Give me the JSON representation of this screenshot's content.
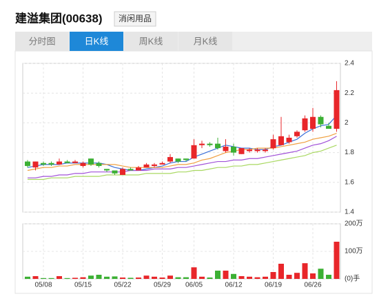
{
  "header": {
    "title": "建溢集团(00638)",
    "tag": "消闲用品"
  },
  "tabs": [
    "分时图",
    "日K线",
    "周K线",
    "月K线"
  ],
  "active_tab": 1,
  "chart_data": [
    {
      "type": "candlestick",
      "categories": [
        null,
        null,
        "05/08",
        null,
        null,
        null,
        null,
        "05/15",
        null,
        null,
        null,
        null,
        "05/22",
        null,
        null,
        null,
        null,
        "05/29",
        null,
        null,
        null,
        "06/05",
        null,
        null,
        null,
        null,
        "06/12",
        null,
        null,
        null,
        null,
        "06/19",
        null,
        null,
        null,
        null,
        "06/26",
        null,
        null,
        null
      ],
      "open": [
        1.74,
        1.7,
        1.73,
        1.73,
        1.72,
        1.74,
        1.73,
        1.71,
        1.76,
        1.73,
        1.69,
        1.68,
        1.65,
        1.69,
        1.68,
        1.7,
        1.71,
        1.72,
        1.74,
        1.76,
        1.76,
        1.76,
        1.85,
        1.86,
        1.86,
        1.81,
        1.84,
        1.79,
        1.81,
        1.81,
        1.81,
        1.83,
        1.85,
        1.87,
        1.91,
        1.95,
        1.96,
        2.04,
        1.98,
        1.96
      ],
      "high": [
        1.75,
        1.74,
        1.74,
        1.74,
        1.76,
        1.75,
        1.75,
        1.74,
        1.76,
        1.74,
        1.69,
        1.68,
        1.7,
        1.7,
        1.71,
        1.73,
        1.73,
        1.74,
        1.79,
        1.76,
        1.76,
        1.89,
        1.88,
        1.87,
        1.9,
        1.89,
        1.86,
        1.83,
        1.83,
        1.83,
        1.83,
        1.92,
        2.04,
        1.92,
        1.95,
        2.05,
        2.1,
        2.05,
        2.0,
        2.28
      ],
      "low": [
        1.7,
        1.68,
        1.71,
        1.71,
        1.72,
        1.73,
        1.73,
        1.7,
        1.71,
        1.7,
        1.67,
        1.65,
        1.65,
        1.68,
        1.68,
        1.7,
        1.7,
        1.72,
        1.73,
        1.73,
        1.74,
        1.76,
        1.83,
        1.84,
        1.82,
        1.8,
        1.78,
        1.79,
        1.8,
        1.8,
        1.8,
        1.82,
        1.85,
        1.86,
        1.9,
        1.94,
        1.94,
        1.97,
        1.96,
        1.94
      ],
      "close": [
        1.71,
        1.74,
        1.72,
        1.72,
        1.74,
        1.73,
        1.74,
        1.73,
        1.72,
        1.71,
        1.68,
        1.66,
        1.69,
        1.68,
        1.7,
        1.72,
        1.72,
        1.73,
        1.77,
        1.74,
        1.75,
        1.85,
        1.86,
        1.85,
        1.83,
        1.84,
        1.8,
        1.83,
        1.82,
        1.82,
        1.82,
        1.89,
        1.91,
        1.9,
        1.94,
        2.03,
        2.04,
        1.99,
        1.96,
        2.22
      ],
      "up_color": "#e8262a",
      "down_color": "#3cb034",
      "series": [
        {
          "color": "#3a6fd8",
          "values": [
            1.7,
            1.71,
            1.72,
            1.72,
            1.72,
            1.73,
            1.73,
            1.73,
            1.73,
            1.73,
            1.72,
            1.7,
            1.69,
            1.68,
            1.68,
            1.69,
            1.7,
            1.71,
            1.73,
            1.74,
            1.74,
            1.77,
            1.79,
            1.81,
            1.83,
            1.85,
            1.84,
            1.83,
            1.83,
            1.82,
            1.82,
            1.84,
            1.85,
            1.87,
            1.89,
            1.93,
            1.96,
            1.98,
            1.99,
            2.05
          ]
        },
        {
          "color": "#f0a040",
          "values": [
            1.68,
            1.69,
            1.7,
            1.7,
            1.71,
            1.71,
            1.72,
            1.72,
            1.72,
            1.72,
            1.72,
            1.72,
            1.71,
            1.7,
            1.7,
            1.7,
            1.7,
            1.7,
            1.71,
            1.72,
            1.72,
            1.73,
            1.75,
            1.76,
            1.78,
            1.8,
            1.81,
            1.82,
            1.82,
            1.83,
            1.83,
            1.83,
            1.84,
            1.85,
            1.86,
            1.87,
            1.89,
            1.9,
            1.91,
            1.93
          ]
        },
        {
          "color": "#a050d8",
          "values": [
            1.63,
            1.63,
            1.64,
            1.64,
            1.65,
            1.65,
            1.66,
            1.66,
            1.67,
            1.67,
            1.67,
            1.67,
            1.67,
            1.68,
            1.68,
            1.68,
            1.69,
            1.69,
            1.69,
            1.7,
            1.7,
            1.71,
            1.72,
            1.73,
            1.74,
            1.74,
            1.75,
            1.75,
            1.76,
            1.76,
            1.77,
            1.78,
            1.79,
            1.8,
            1.81,
            1.83,
            1.85,
            1.86,
            1.88,
            1.91
          ]
        },
        {
          "color": "#a8d860",
          "values": [
            1.62,
            1.62,
            1.62,
            1.63,
            1.63,
            1.63,
            1.64,
            1.64,
            1.64,
            1.64,
            1.65,
            1.65,
            1.65,
            1.65,
            1.65,
            1.66,
            1.66,
            1.66,
            1.66,
            1.67,
            1.67,
            1.68,
            1.68,
            1.69,
            1.7,
            1.7,
            1.71,
            1.71,
            1.72,
            1.72,
            1.73,
            1.74,
            1.75,
            1.76,
            1.77,
            1.78,
            1.8,
            1.81,
            1.83,
            1.85
          ]
        }
      ],
      "ylim": [
        1.4,
        2.4
      ],
      "yticks": [
        1.4,
        1.6,
        1.8,
        2,
        2.2,
        2.4
      ],
      "grid": true
    },
    {
      "type": "volume",
      "values": [
        8,
        10,
        3,
        3,
        10,
        3,
        4,
        6,
        12,
        15,
        8,
        9,
        5,
        4,
        5,
        12,
        8,
        5,
        12,
        6,
        6,
        42,
        8,
        5,
        30,
        30,
        18,
        10,
        8,
        6,
        8,
        25,
        55,
        15,
        22,
        57,
        20,
        37,
        15,
        135
      ],
      "ylim": [
        0,
        200
      ],
      "yticks": [
        {
          "value": 0,
          "label": "(0)手"
        },
        {
          "value": 100,
          "label": "100万"
        },
        {
          "value": 200,
          "label": "200万"
        }
      ]
    }
  ]
}
